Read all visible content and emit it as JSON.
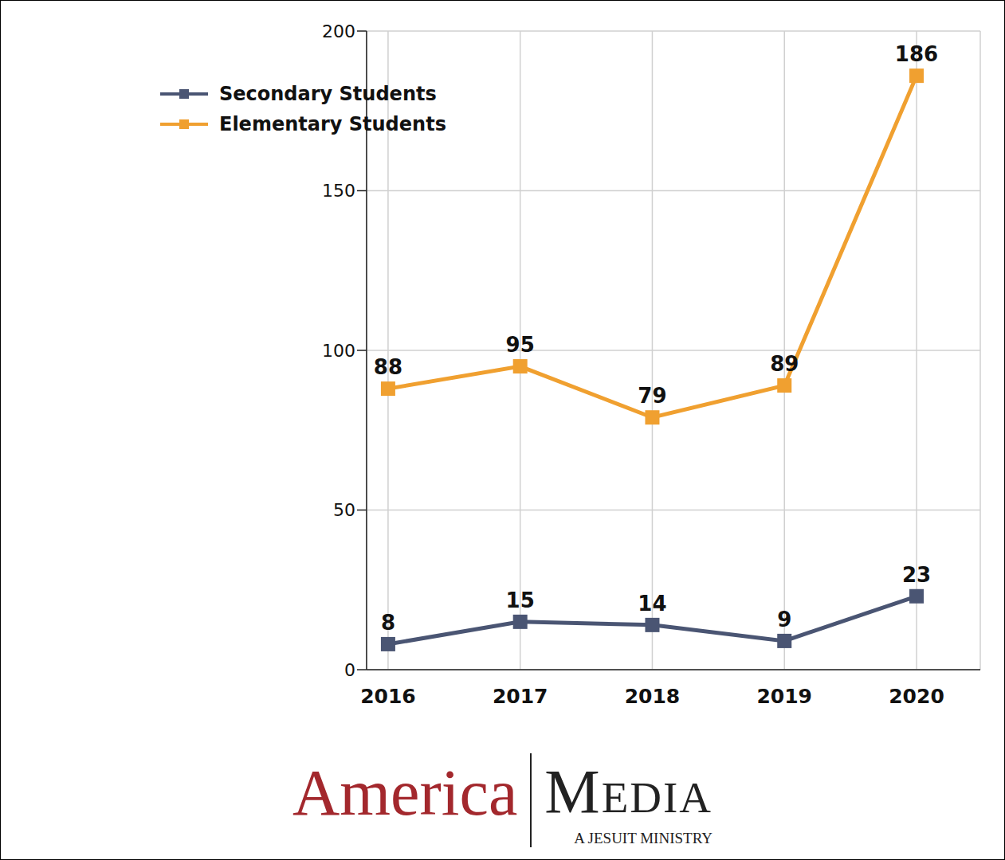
{
  "chart_data": {
    "type": "line",
    "categories": [
      "2016",
      "2017",
      "2018",
      "2019",
      "2020"
    ],
    "series": [
      {
        "name": "Secondary Students",
        "color": "#4a5573",
        "marker": "square",
        "values": [
          8,
          15,
          14,
          9,
          23
        ]
      },
      {
        "name": "Elementary Students",
        "color": "#f0a030",
        "marker": "square",
        "values": [
          88,
          95,
          79,
          89,
          186
        ]
      }
    ],
    "ylim": [
      0,
      200
    ],
    "yticks": [
      0,
      50,
      100,
      150,
      200
    ],
    "grid": true,
    "legend": "upper left",
    "data_labels": true,
    "annotations": [
      "America",
      "Media",
      "A JESUIT MINISTRY"
    ]
  }
}
